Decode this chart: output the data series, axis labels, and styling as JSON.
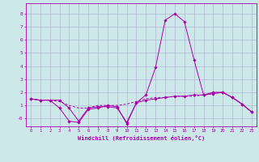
{
  "xlabel": "Windchill (Refroidissement éolien,°C)",
  "background_color": "#cce8e8",
  "grid_color": "#aaaacc",
  "line_color": "#aa00aa",
  "x_values": [
    0,
    1,
    2,
    3,
    4,
    5,
    6,
    7,
    8,
    9,
    10,
    11,
    12,
    13,
    14,
    15,
    16,
    17,
    18,
    19,
    20,
    21,
    22,
    23
  ],
  "line1": [
    1.5,
    1.4,
    1.4,
    1.4,
    0.8,
    -0.2,
    0.8,
    0.9,
    0.9,
    0.8,
    -0.3,
    1.2,
    1.8,
    3.9,
    7.5,
    8.0,
    7.4,
    4.5,
    1.8,
    2.0,
    2.0,
    1.6,
    1.1,
    0.5
  ],
  "line2": [
    1.5,
    1.4,
    1.4,
    1.3,
    1.0,
    0.8,
    0.8,
    1.0,
    1.0,
    1.0,
    1.1,
    1.3,
    1.5,
    1.6,
    1.6,
    1.7,
    1.7,
    1.7,
    1.8,
    1.9,
    2.0,
    1.6,
    1.1,
    0.5
  ],
  "line3": [
    1.5,
    1.4,
    1.4,
    0.8,
    -0.2,
    -0.3,
    0.7,
    0.8,
    1.0,
    0.9,
    -0.4,
    1.2,
    1.4,
    1.5,
    1.6,
    1.7,
    1.7,
    1.8,
    1.8,
    1.9,
    2.0,
    1.6,
    1.1,
    0.5
  ],
  "ylim": [
    -0.6,
    8.8
  ],
  "xlim": [
    -0.5,
    23.5
  ],
  "yticks": [
    0,
    1,
    2,
    3,
    4,
    5,
    6,
    7,
    8
  ],
  "ytick_labels": [
    "-0",
    "1",
    "2",
    "3",
    "4",
    "5",
    "6",
    "7",
    "8"
  ],
  "xticks": [
    0,
    1,
    2,
    3,
    4,
    5,
    6,
    7,
    8,
    9,
    10,
    11,
    12,
    13,
    14,
    15,
    16,
    17,
    18,
    19,
    20,
    21,
    22,
    23
  ],
  "tick_fontsize": 4.0,
  "xlabel_fontsize": 5.0,
  "marker": "D",
  "markersize": 1.8,
  "linewidth": 0.7
}
